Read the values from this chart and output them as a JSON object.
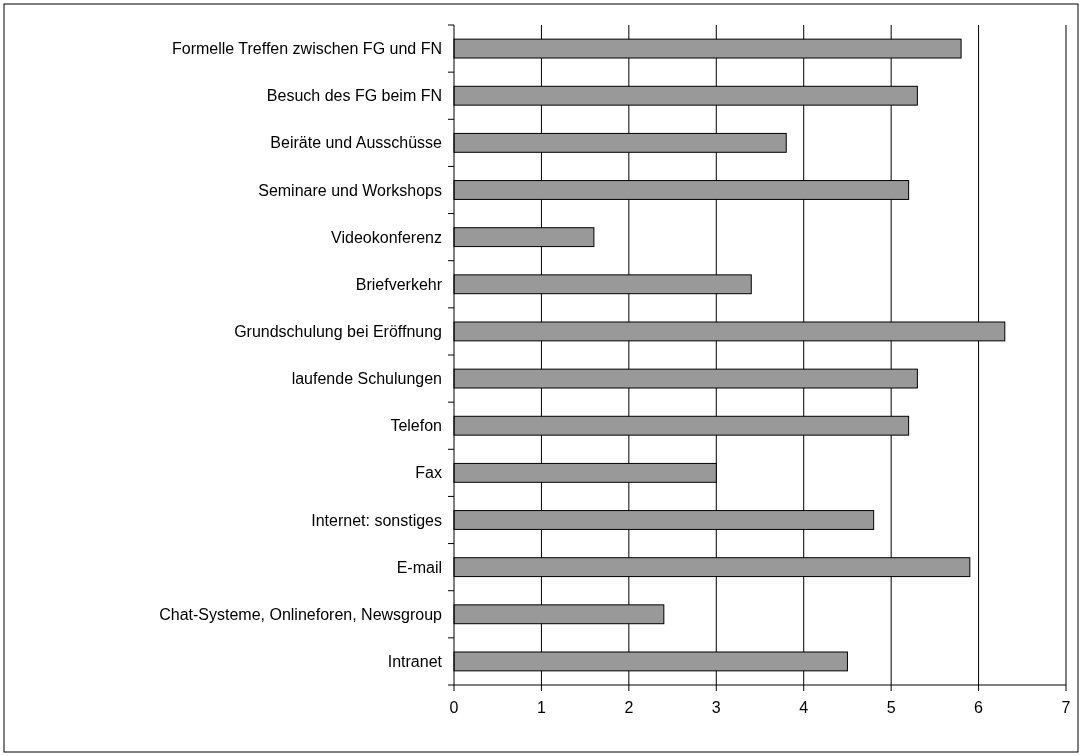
{
  "chart_data": {
    "type": "bar",
    "orientation": "horizontal",
    "categories": [
      "Formelle Treffen zwischen FG und FN",
      "Besuch des FG beim FN",
      "Beiräte und Ausschüsse",
      "Seminare und Workshops",
      "Videokonferenz",
      "Briefverkehr",
      "Grundschulung bei Eröffnung",
      "laufende Schulungen",
      "Telefon",
      "Fax",
      "Internet: sonstiges",
      "E-mail",
      "Chat-Systeme, Onlineforen, Newsgroup",
      "Intranet"
    ],
    "values": [
      5.8,
      5.3,
      3.8,
      5.2,
      1.6,
      3.4,
      6.3,
      5.3,
      5.2,
      3.0,
      4.8,
      5.9,
      2.4,
      4.5
    ],
    "color": "#999999",
    "xlim": [
      0,
      7
    ],
    "xticks": [
      0,
      1,
      2,
      3,
      4,
      5,
      6,
      7
    ],
    "grid": "x"
  }
}
